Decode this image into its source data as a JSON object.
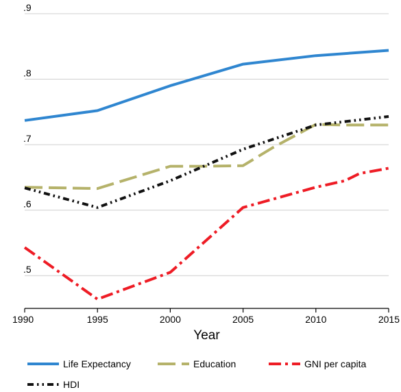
{
  "chart_data": {
    "type": "line",
    "title": "",
    "xlabel": "Year",
    "ylabel": "",
    "x": [
      1990,
      1995,
      2000,
      2005,
      2010,
      2015
    ],
    "xlim": [
      1990,
      2015
    ],
    "ylim": [
      0.45,
      0.9
    ],
    "yticks": [
      0.5,
      0.6,
      0.7,
      0.8,
      0.9
    ],
    "ytick_labels": [
      ".5",
      ".6",
      ".7",
      ".8",
      ".9"
    ],
    "xticks": [
      1990,
      1995,
      2000,
      2005,
      2010,
      2015
    ],
    "xtick_labels": [
      "1990",
      "1995",
      "2000",
      "2005",
      "2010",
      "2015"
    ],
    "grid": "horizontal",
    "legend_position": "bottom",
    "series": [
      {
        "name": "Life Expectancy",
        "color": "#2f86d0",
        "dash": "solid",
        "points": [
          [
            1990,
            0.737
          ],
          [
            1995,
            0.752
          ],
          [
            2000,
            0.79
          ],
          [
            2005,
            0.823
          ],
          [
            2010,
            0.836
          ],
          [
            2015,
            0.844
          ]
        ]
      },
      {
        "name": "Education",
        "color": "#b5b26a",
        "dash": "longdash",
        "points": [
          [
            1990,
            0.635
          ],
          [
            1995,
            0.633
          ],
          [
            2000,
            0.667
          ],
          [
            2002,
            0.667
          ],
          [
            2005,
            0.668
          ],
          [
            2007,
            0.695
          ],
          [
            2010,
            0.731
          ],
          [
            2012,
            0.73
          ],
          [
            2015,
            0.73
          ]
        ]
      },
      {
        "name": "GNI per capita",
        "color": "#ee1c25",
        "dash": "dashdot",
        "points": [
          [
            1990,
            0.543
          ],
          [
            1995,
            0.464
          ],
          [
            2000,
            0.505
          ],
          [
            2005,
            0.604
          ],
          [
            2010,
            0.635
          ],
          [
            2012,
            0.645
          ],
          [
            2013,
            0.656
          ],
          [
            2015,
            0.664
          ]
        ]
      },
      {
        "name": "HDI",
        "color": "#111111",
        "dash": "dashdotdot",
        "points": [
          [
            1990,
            0.634
          ],
          [
            1995,
            0.604
          ],
          [
            2000,
            0.645
          ],
          [
            2005,
            0.693
          ],
          [
            2010,
            0.73
          ],
          [
            2015,
            0.743
          ]
        ]
      }
    ]
  }
}
